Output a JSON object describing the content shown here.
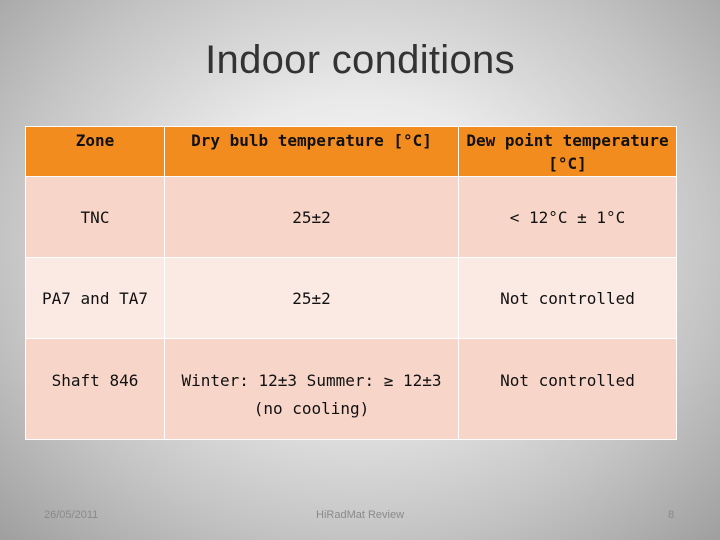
{
  "slide": {
    "title": "Indoor conditions",
    "table": {
      "headers": [
        "Zone",
        "Dry bulb temperature [°C]",
        "Dew point temperature [°C]"
      ],
      "rows": [
        [
          "TNC",
          "25±2",
          "< 12°C ± 1°C"
        ],
        [
          "PA7 and TA7",
          "25±2",
          "Not controlled"
        ],
        [
          "Shaft 846",
          "Winter: 12±3 Summer: ≥ 12±3 (no cooling)",
          "Not controlled"
        ]
      ]
    },
    "footer": {
      "date": "26/05/2011",
      "center": "HiRadMat Review",
      "page": "8"
    }
  },
  "colors": {
    "header_fill": "#f28c1e",
    "row_fill_dark": "#f7d6c9",
    "row_fill_light": "#fbeae3"
  }
}
